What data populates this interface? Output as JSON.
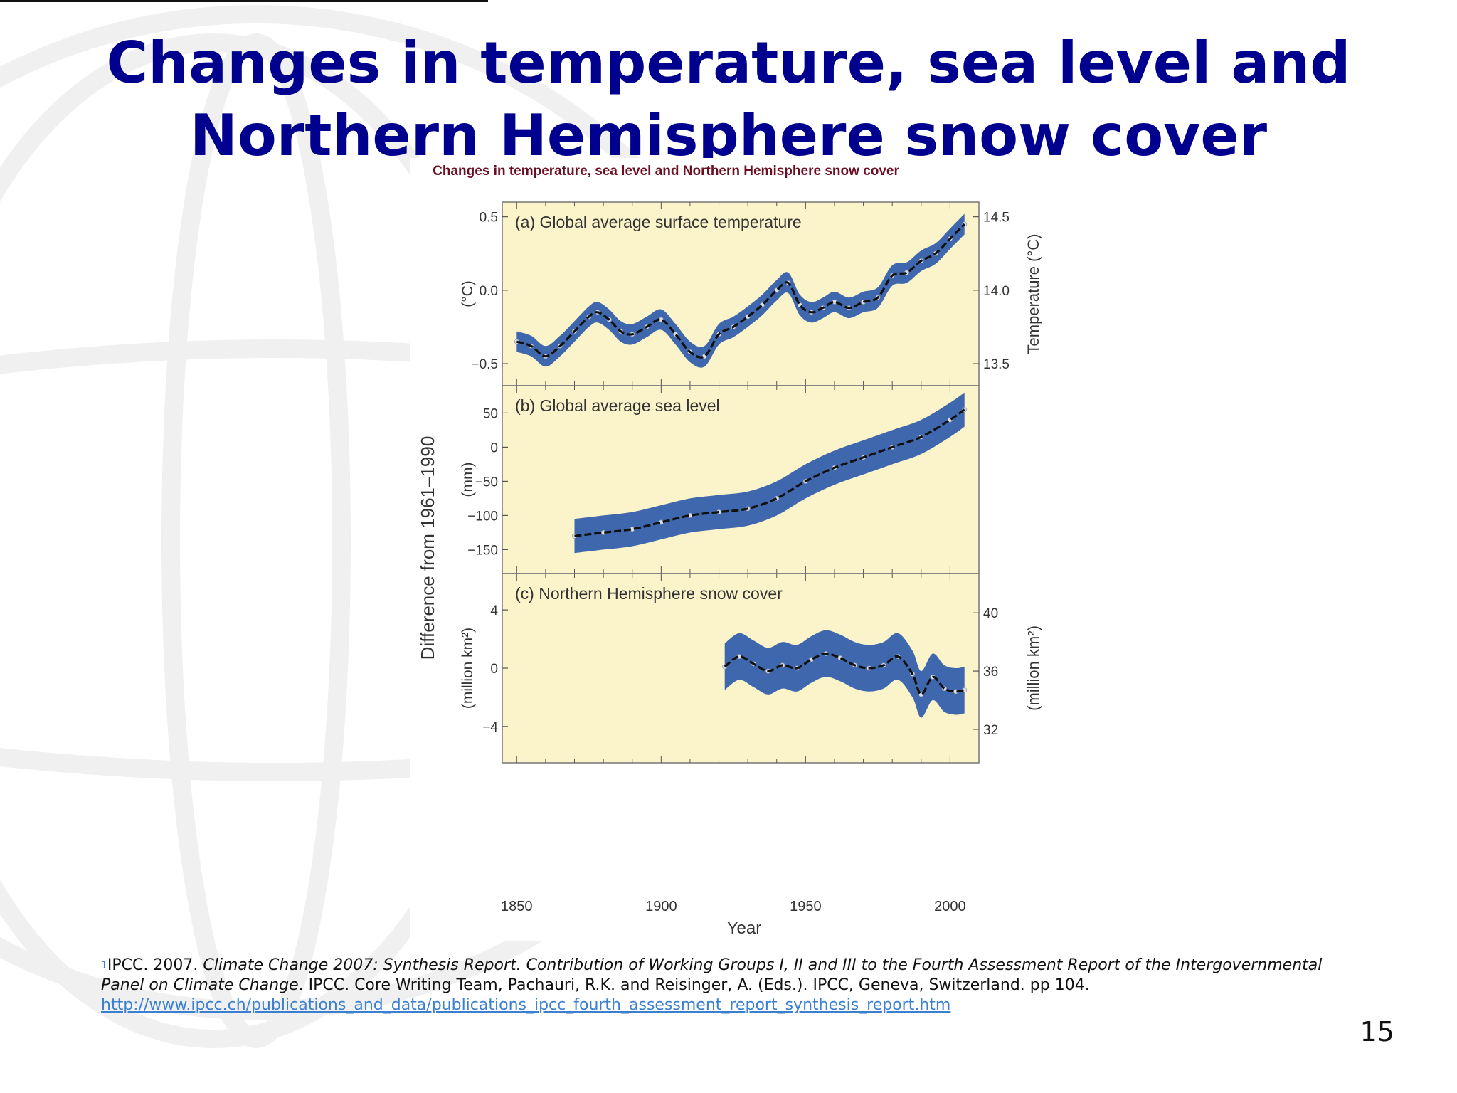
{
  "slide": {
    "title_line1": "Changes in temperature, sea level and",
    "title_line2": "Northern Hemisphere snow cover",
    "page_number": "15"
  },
  "citation": {
    "mark": "1",
    "part1": "IPCC. 2007. ",
    "italic1": "Climate Change 2007: Synthesis Report. Contribution of Working Groups I, II and III to the Fourth Assessment Report of the Intergovernmental Panel on Climate Change",
    "part2": ". IPCC. Core Writing Team, Pachauri, R.K. and Reisinger, A. (Eds.). IPCC, Geneva, Switzerland. pp 104. ",
    "link": "http://www.ipcc.ch/publications_and_data/publications_ipcc_fourth_assessment_report_synthesis_report.htm"
  },
  "chart_data": {
    "type": "line",
    "title": "Changes in temperature, sea level and Northern Hemisphere snow cover",
    "xlabel": "Year",
    "left_axis_label": "Difference from 1961–1990",
    "xlim": [
      1845,
      2010
    ],
    "x_ticks": [
      1850,
      1900,
      1950,
      2000
    ],
    "x_tick_labels": [
      "1850",
      "1900",
      "1950",
      "2000"
    ],
    "colors": {
      "panel_bg": "#fbf3c9",
      "band": "#3e67ae",
      "line": "#111111",
      "points": "#d9dee8",
      "border": "#777777",
      "title": "#6b0f22"
    },
    "panels": [
      {
        "label": "(a) Global average surface temperature",
        "ylabel": "(°C)",
        "ylim": [
          -0.65,
          0.6
        ],
        "y_ticks": [
          0.5,
          0.0,
          -0.5
        ],
        "y_tick_labels": [
          "0.5",
          "0.0",
          "−0.5"
        ],
        "right_ylabel": "Temperature (°C)",
        "right_ticks": [
          14.5,
          14.0,
          13.5
        ],
        "right_tick_labels": [
          "14.5",
          "14.0",
          "13.5"
        ],
        "right_offset": 14.0,
        "band_half_width": 0.07,
        "x": [
          1850,
          1855,
          1860,
          1865,
          1870,
          1875,
          1878,
          1882,
          1886,
          1890,
          1895,
          1900,
          1905,
          1910,
          1915,
          1920,
          1925,
          1930,
          1935,
          1940,
          1944,
          1948,
          1952,
          1956,
          1960,
          1965,
          1970,
          1975,
          1980,
          1985,
          1990,
          1995,
          2000,
          2005
        ],
        "values": [
          -0.35,
          -0.38,
          -0.45,
          -0.38,
          -0.28,
          -0.18,
          -0.15,
          -0.2,
          -0.28,
          -0.3,
          -0.25,
          -0.2,
          -0.3,
          -0.42,
          -0.45,
          -0.3,
          -0.25,
          -0.18,
          -0.1,
          0.0,
          0.05,
          -0.1,
          -0.15,
          -0.12,
          -0.08,
          -0.12,
          -0.08,
          -0.05,
          0.1,
          0.12,
          0.2,
          0.25,
          0.35,
          0.45
        ]
      },
      {
        "label": "(b) Global average sea level",
        "ylabel": "(mm)",
        "ylim": [
          -185,
          90
        ],
        "y_ticks": [
          50,
          0,
          -50,
          -100,
          -150
        ],
        "y_tick_labels": [
          "50",
          "0",
          "−50",
          "−100",
          "−150"
        ],
        "band_half_width": 25,
        "x": [
          1870,
          1880,
          1890,
          1900,
          1910,
          1920,
          1930,
          1940,
          1950,
          1960,
          1970,
          1980,
          1990,
          2000,
          2005
        ],
        "values": [
          -130,
          -125,
          -120,
          -110,
          -100,
          -95,
          -90,
          -75,
          -50,
          -30,
          -15,
          0,
          15,
          40,
          55
        ]
      },
      {
        "label": "(c) Northern Hemisphere snow cover",
        "ylabel": "(million km²)",
        "ylim": [
          -6.5,
          6.5
        ],
        "y_ticks": [
          4,
          0,
          -4
        ],
        "y_tick_labels": [
          "4",
          "0",
          "−4"
        ],
        "right_ylabel": "(million km²)",
        "right_ticks": [
          40,
          36,
          32
        ],
        "right_tick_labels": [
          "40",
          "36",
          "32"
        ],
        "right_offset": 36.2,
        "band_half_width": 1.6,
        "x": [
          1922,
          1927,
          1932,
          1937,
          1942,
          1947,
          1952,
          1957,
          1962,
          1967,
          1972,
          1977,
          1982,
          1987,
          1990,
          1994,
          1998,
          2002,
          2005
        ],
        "values": [
          0.1,
          0.8,
          0.3,
          -0.2,
          0.2,
          0.0,
          0.6,
          1.0,
          0.7,
          0.2,
          0.0,
          0.2,
          0.8,
          -0.4,
          -1.8,
          -0.6,
          -1.4,
          -1.6,
          -1.5
        ]
      }
    ]
  }
}
